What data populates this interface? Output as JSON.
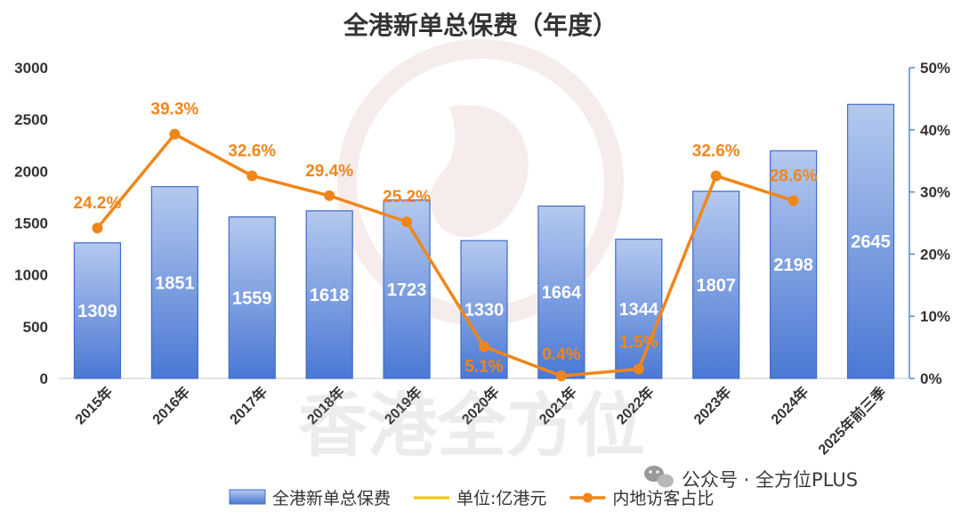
{
  "chart_data": {
    "type": "bar",
    "title": "全港新单总保费（年度）",
    "categories": [
      "2015年",
      "2016年",
      "2017年",
      "2018年",
      "2019年",
      "2020年",
      "2021年",
      "2022年",
      "2023年",
      "2024年",
      "2025年前三季"
    ],
    "series": [
      {
        "name": "全港新单总保费",
        "type": "bar",
        "axis": "left",
        "values": [
          1309,
          1851,
          1559,
          1618,
          1723,
          1330,
          1664,
          1344,
          1807,
          2198,
          2645
        ],
        "value_labels": [
          "1309",
          "1851",
          "1559",
          "1618",
          "1723",
          "1330",
          "1664",
          "1344",
          "1807",
          "2198",
          "2645"
        ]
      },
      {
        "name": "内地访客占比",
        "type": "line",
        "axis": "right",
        "values": [
          24.2,
          39.3,
          32.6,
          29.4,
          25.2,
          5.1,
          0.4,
          1.5,
          32.6,
          28.6,
          null
        ],
        "value_labels": [
          "24.2%",
          "39.3%",
          "32.6%",
          "29.4%",
          "25.2%",
          "5.1%",
          "0.4%",
          "1.5%",
          "32.6%",
          "28.6%",
          ""
        ]
      }
    ],
    "legend": {
      "position": "bottom",
      "items": [
        {
          "label": "全港新单总保费",
          "kind": "bar"
        },
        {
          "label": "单位:亿港元",
          "kind": "line"
        },
        {
          "label": "内地访客占比",
          "kind": "line-marker"
        }
      ]
    },
    "left_axis": {
      "min": 0,
      "max": 3000,
      "ticks": [
        0,
        500,
        1000,
        1500,
        2000,
        2500,
        3000
      ],
      "tick_labels": [
        "0",
        "500",
        "1000",
        "1500",
        "2000",
        "2500",
        "3000"
      ]
    },
    "right_axis": {
      "min": 0,
      "max": 50,
      "ticks": [
        0,
        10,
        20,
        30,
        40,
        50
      ],
      "tick_labels": [
        "0%",
        "10%",
        "20%",
        "30%",
        "40%",
        "50%"
      ]
    },
    "grid": false
  },
  "watermark": {
    "text": "香港全方位",
    "badge_text": "公众号 · 全方位PLUS"
  },
  "colors": {
    "bar_top": "#b5c9ee",
    "bar_bottom": "#4a78d4",
    "bar_border": "#3f6cc8",
    "line": "#f0861a",
    "legend_unit_line": "#f2c200",
    "label_orange": "#f0861a",
    "axis_right": "#5d87c9",
    "text": "#333333",
    "bar_value_text": "#ffffff",
    "watermark": "#e8c9c9"
  }
}
